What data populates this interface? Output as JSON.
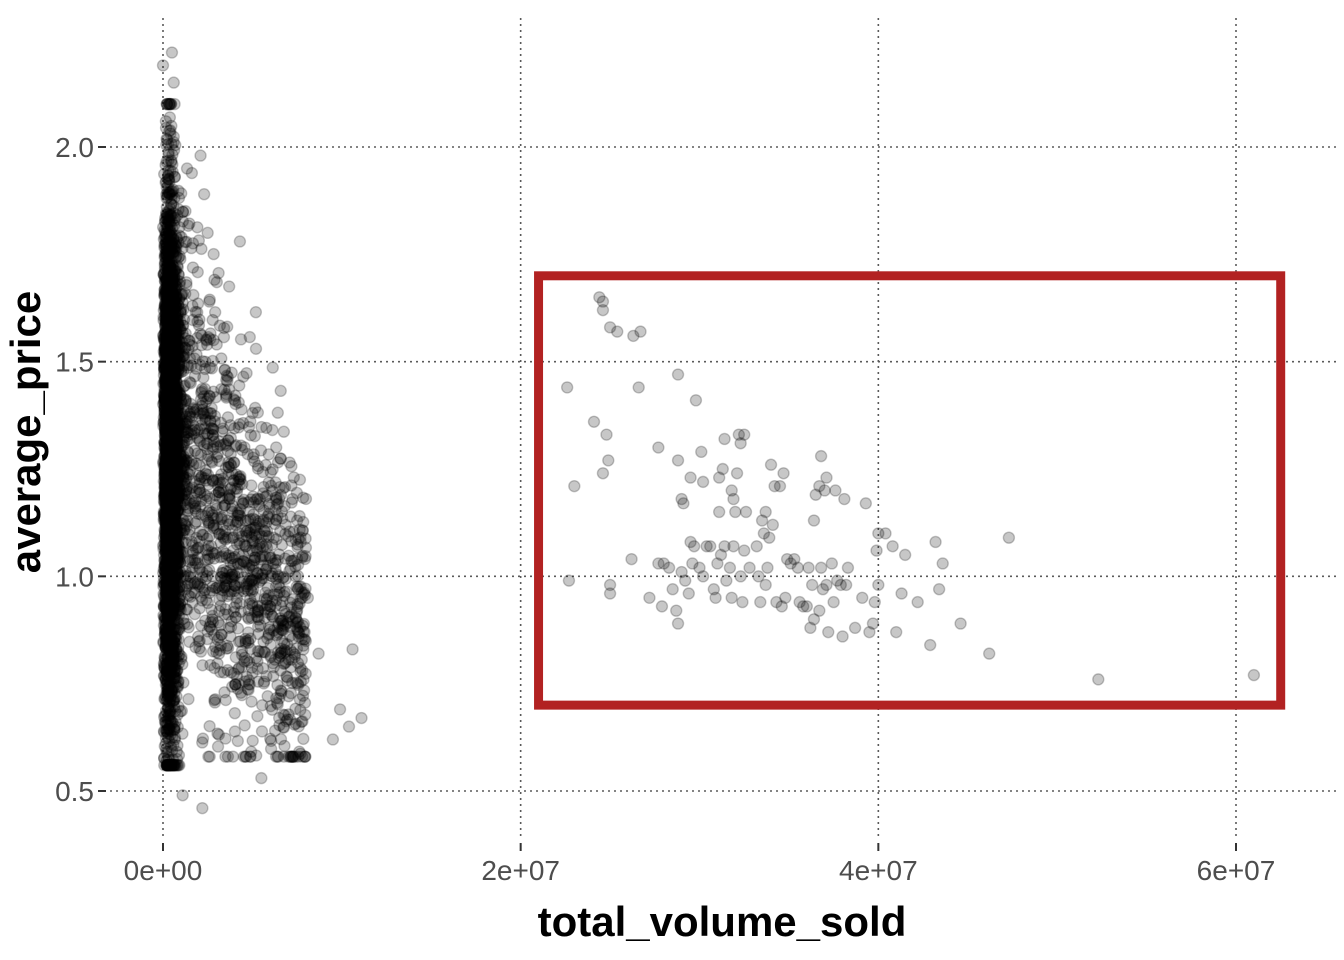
{
  "chart_data": {
    "type": "scatter",
    "xlabel": "total_volume_sold",
    "ylabel": "average_price",
    "xlim": [
      -3000000,
      65000000
    ],
    "ylim": [
      0.38,
      2.24
    ],
    "x_ticks": [
      0,
      20000000,
      40000000,
      60000000
    ],
    "x_tick_labels": [
      "0e+00",
      "2e+07",
      "4e+07",
      "6e+07"
    ],
    "y_ticks": [
      0.5,
      1.0,
      1.5,
      2.0
    ],
    "y_tick_labels": [
      "0.5",
      "1.0",
      "1.5",
      "2.0"
    ],
    "grid": true,
    "grid_style": "dotted",
    "point_color": "#000000",
    "point_opacity": 0.22,
    "highlight_color": "#b22222",
    "highlight_box": {
      "x": [
        21000000,
        62500000
      ],
      "y": [
        0.7,
        1.7
      ]
    },
    "dense_cluster": {
      "description_visible": false,
      "x_range": [
        0,
        11200000
      ],
      "y_range": [
        0.46,
        2.22
      ],
      "approx_point_count": 16000
    },
    "series": [
      {
        "values": [
          [
            0,
            2.19
          ],
          [
            500000,
            2.22
          ],
          [
            600000,
            2.15
          ],
          [
            2100000,
            1.98
          ],
          [
            2300000,
            1.89
          ],
          [
            4300000,
            1.78
          ],
          [
            8100000,
            0.95
          ],
          [
            8700000,
            0.82
          ],
          [
            9900000,
            0.69
          ],
          [
            10600000,
            0.83
          ],
          [
            11100000,
            0.67
          ],
          [
            10400000,
            0.65
          ],
          [
            9500000,
            0.62
          ],
          [
            5500000,
            0.53
          ],
          [
            2200000,
            0.46
          ],
          [
            1100000,
            0.49
          ],
          [
            5200000,
            1.53
          ],
          [
            7500000,
            1.13
          ],
          [
            7700000,
            1.08
          ],
          [
            22600000,
            1.44
          ],
          [
            23000000,
            1.21
          ],
          [
            22700000,
            0.99
          ],
          [
            24100000,
            1.36
          ],
          [
            24400000,
            1.65
          ],
          [
            24600000,
            1.62
          ],
          [
            24600000,
            1.64
          ],
          [
            24800000,
            1.33
          ],
          [
            24600000,
            1.24
          ],
          [
            24900000,
            1.27
          ],
          [
            25000000,
            1.58
          ],
          [
            25400000,
            1.57
          ],
          [
            25000000,
            0.98
          ],
          [
            25000000,
            0.96
          ],
          [
            26200000,
            1.04
          ],
          [
            26300000,
            1.56
          ],
          [
            26700000,
            1.57
          ],
          [
            26600000,
            1.44
          ],
          [
            27200000,
            0.95
          ],
          [
            27700000,
            1.03
          ],
          [
            27700000,
            1.3
          ],
          [
            27900000,
            0.93
          ],
          [
            28000000,
            1.03
          ],
          [
            28300000,
            1.02
          ],
          [
            28500000,
            0.97
          ],
          [
            28700000,
            0.92
          ],
          [
            28800000,
            1.47
          ],
          [
            28800000,
            1.27
          ],
          [
            28800000,
            0.89
          ],
          [
            29000000,
            1.18
          ],
          [
            29000000,
            1.01
          ],
          [
            29100000,
            1.17
          ],
          [
            29200000,
            0.99
          ],
          [
            29400000,
            0.96
          ],
          [
            29500000,
            1.08
          ],
          [
            29500000,
            1.23
          ],
          [
            29600000,
            1.03
          ],
          [
            29700000,
            1.07
          ],
          [
            29800000,
            1.41
          ],
          [
            30000000,
            1.02
          ],
          [
            30100000,
            1.29
          ],
          [
            30200000,
            1.22
          ],
          [
            30200000,
            1.0
          ],
          [
            30400000,
            1.07
          ],
          [
            30600000,
            1.07
          ],
          [
            30800000,
            0.97
          ],
          [
            30900000,
            0.95
          ],
          [
            31000000,
            1.03
          ],
          [
            31100000,
            1.23
          ],
          [
            31100000,
            1.15
          ],
          [
            31200000,
            1.05
          ],
          [
            31300000,
            1.25
          ],
          [
            31400000,
            1.07
          ],
          [
            31400000,
            1.32
          ],
          [
            31500000,
            0.99
          ],
          [
            31700000,
            1.02
          ],
          [
            31800000,
            0.95
          ],
          [
            31800000,
            1.2
          ],
          [
            31900000,
            1.18
          ],
          [
            31900000,
            1.07
          ],
          [
            32000000,
            1.15
          ],
          [
            32100000,
            1.24
          ],
          [
            32200000,
            1.33
          ],
          [
            32300000,
            1.31
          ],
          [
            32300000,
            1.0
          ],
          [
            32400000,
            0.94
          ],
          [
            32500000,
            1.33
          ],
          [
            32500000,
            1.06
          ],
          [
            32600000,
            1.15
          ],
          [
            32800000,
            1.02
          ],
          [
            33200000,
            1.07
          ],
          [
            33300000,
            1.0
          ],
          [
            33400000,
            0.94
          ],
          [
            33500000,
            1.13
          ],
          [
            33600000,
            1.1
          ],
          [
            33700000,
            1.15
          ],
          [
            33700000,
            0.98
          ],
          [
            33800000,
            1.02
          ],
          [
            33900000,
            1.09
          ],
          [
            34000000,
            1.26
          ],
          [
            34100000,
            1.12
          ],
          [
            34200000,
            1.21
          ],
          [
            34300000,
            0.94
          ],
          [
            34500000,
            1.21
          ],
          [
            34600000,
            0.93
          ],
          [
            34700000,
            1.24
          ],
          [
            34800000,
            0.95
          ],
          [
            34900000,
            1.04
          ],
          [
            35100000,
            1.03
          ],
          [
            35300000,
            1.04
          ],
          [
            35500000,
            1.02
          ],
          [
            35600000,
            0.94
          ],
          [
            35800000,
            0.93
          ],
          [
            36000000,
            0.93
          ],
          [
            36100000,
            1.02
          ],
          [
            36200000,
            0.88
          ],
          [
            36300000,
            0.98
          ],
          [
            36400000,
            1.13
          ],
          [
            36400000,
            0.9
          ],
          [
            36500000,
            1.19
          ],
          [
            36700000,
            0.92
          ],
          [
            36700000,
            1.21
          ],
          [
            36800000,
            1.28
          ],
          [
            36800000,
            1.02
          ],
          [
            36900000,
            0.97
          ],
          [
            37000000,
            1.2
          ],
          [
            37100000,
            0.98
          ],
          [
            37100000,
            1.23
          ],
          [
            37200000,
            0.87
          ],
          [
            37400000,
            1.03
          ],
          [
            37500000,
            0.94
          ],
          [
            37600000,
            1.2
          ],
          [
            37700000,
            0.99
          ],
          [
            37900000,
            0.98
          ],
          [
            38000000,
            0.86
          ],
          [
            38100000,
            1.18
          ],
          [
            38200000,
            0.98
          ],
          [
            38300000,
            1.02
          ],
          [
            38700000,
            0.88
          ],
          [
            39100000,
            0.95
          ],
          [
            39300000,
            1.17
          ],
          [
            39500000,
            0.87
          ],
          [
            39700000,
            0.89
          ],
          [
            39800000,
            0.94
          ],
          [
            39900000,
            1.06
          ],
          [
            40000000,
            1.1
          ],
          [
            40000000,
            0.98
          ],
          [
            40400000,
            1.1
          ],
          [
            40800000,
            1.07
          ],
          [
            41000000,
            0.87
          ],
          [
            41300000,
            0.96
          ],
          [
            41500000,
            1.05
          ],
          [
            42200000,
            0.94
          ],
          [
            42900000,
            0.84
          ],
          [
            43200000,
            1.08
          ],
          [
            43400000,
            0.97
          ],
          [
            43600000,
            1.03
          ],
          [
            44600000,
            0.89
          ],
          [
            46200000,
            0.82
          ],
          [
            47300000,
            1.09
          ],
          [
            52300000,
            0.76
          ],
          [
            61000000,
            0.77
          ]
        ]
      }
    ]
  }
}
